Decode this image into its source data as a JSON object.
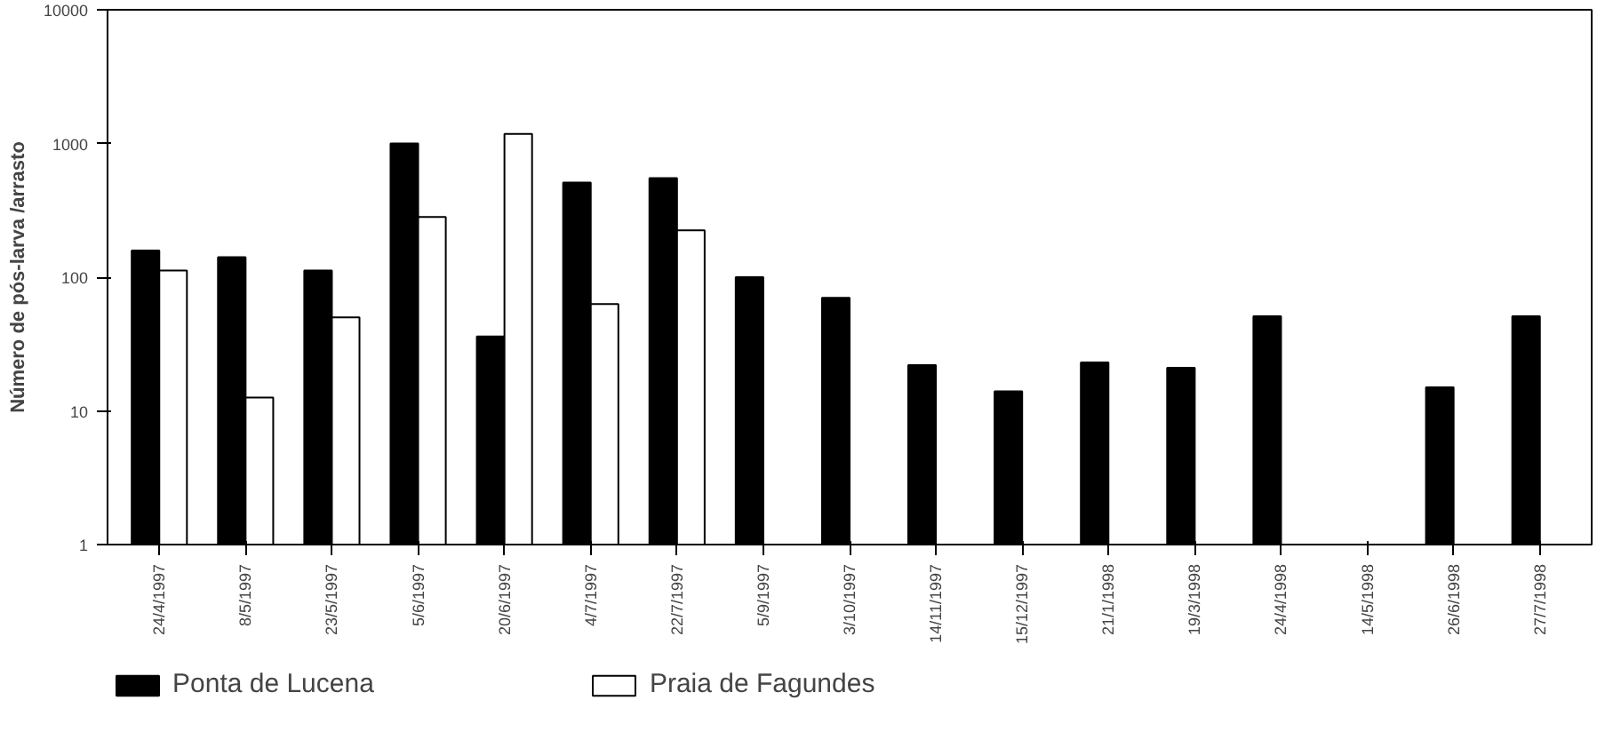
{
  "chart_data": {
    "type": "bar",
    "ylabel": "Número de pós-larva /arrasto",
    "categories": [
      "24/4/1997",
      "8/5/1997",
      "23/5/1997",
      "5/6/1997",
      "20/6/1997",
      "4/7/1997",
      "22/7/1997",
      "5/9/1997",
      "3/10/1997",
      "14/11/1997",
      "15/12/1997",
      "21/1/1998",
      "19/3/1998",
      "24/4/1998",
      "14/5/1998",
      "26/6/1998",
      "27/7/1998"
    ],
    "series": [
      {
        "name": "Ponta de Lucena",
        "color": "#000000",
        "values": [
          158,
          141,
          112,
          1000,
          36,
          510,
          550,
          100,
          70,
          22,
          14,
          23,
          21,
          51,
          null,
          15,
          51
        ]
      },
      {
        "name": "Praia de Fagundes",
        "color": "#ffffff",
        "values": [
          112,
          12.6,
          50,
          282,
          1180,
          63,
          224,
          null,
          null,
          null,
          null,
          null,
          null,
          null,
          null,
          null,
          null
        ]
      }
    ],
    "log": "y",
    "ylim": [
      1,
      10000
    ],
    "yticks": [
      1,
      10,
      100,
      1000,
      10000
    ],
    "grid": false,
    "legend": "bottom left"
  }
}
